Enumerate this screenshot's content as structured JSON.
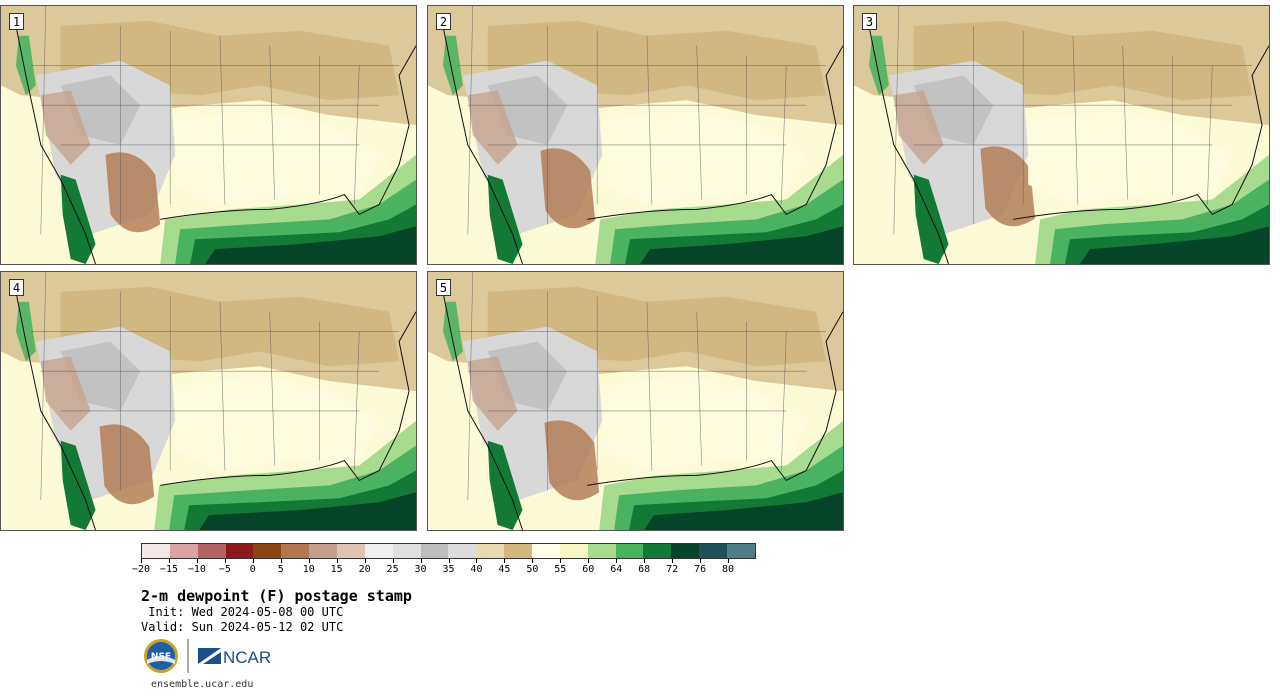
{
  "panels": [
    {
      "label": "1"
    },
    {
      "label": "2"
    },
    {
      "label": "3"
    },
    {
      "label": "4"
    },
    {
      "label": "5"
    }
  ],
  "colorbar": {
    "tick_labels": [
      "−20",
      "−15",
      "−10",
      "−5",
      "0",
      "5",
      "10",
      "15",
      "20",
      "25",
      "30",
      "35",
      "40",
      "45",
      "50",
      "55",
      "60",
      "64",
      "68",
      "72",
      "76",
      "80"
    ],
    "colors": [
      "#f4e8e6",
      "#d9a3a3",
      "#b46363",
      "#8b1a1a",
      "#8b4513",
      "#b07850",
      "#c4a08a",
      "#dfc3b4",
      "#f0eeee",
      "#e0e0e0",
      "#bdbdbd",
      "#dcdcdc",
      "#e6dcb4",
      "#d2b880",
      "#fefde8",
      "#f6f6c4",
      "#a7dc8f",
      "#4bb360",
      "#137a36",
      "#06442a",
      "#1f4f5a",
      "#517e86"
    ]
  },
  "title": "2-m dewpoint (F) postage stamp",
  "init": " Init: Wed 2024-05-08 00 UTC",
  "valid": "Valid: Sun 2024-05-12 02 UTC",
  "logos": {
    "nsf": "NSF",
    "ncar": "NCAR"
  },
  "url": "ensemble.ucar.edu"
}
